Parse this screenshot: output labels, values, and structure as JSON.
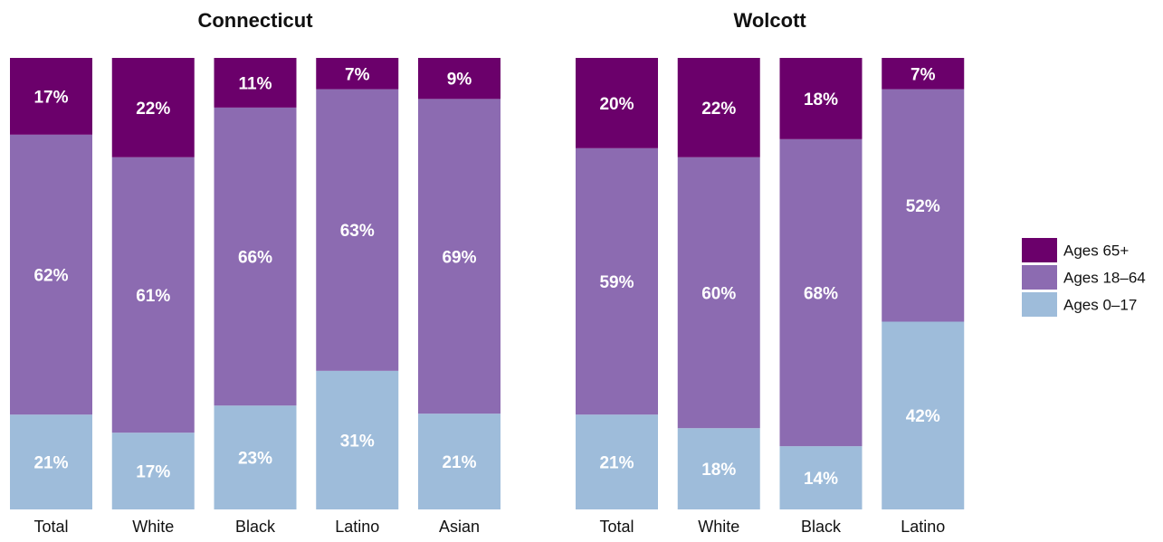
{
  "chart_data": {
    "type": "bar",
    "stacked": true,
    "normalized_percent": true,
    "legend_position": "right",
    "grid": false,
    "legend": [
      {
        "name": "Ages 65+",
        "color": "#6b006b"
      },
      {
        "name": "Ages 18–64",
        "color": "#8c6bb1"
      },
      {
        "name": "Ages 0–17",
        "color": "#9ebcda"
      }
    ],
    "panels": [
      {
        "title": "Connecticut",
        "categories": [
          "Total",
          "White",
          "Black",
          "Latino",
          "Asian"
        ],
        "series": [
          {
            "name": "Ages 0–17",
            "values": [
              21,
              17,
              23,
              31,
              21
            ],
            "labels": [
              "21%",
              "17%",
              "23%",
              "31%",
              "21%"
            ]
          },
          {
            "name": "Ages 18–64",
            "values": [
              62,
              61,
              66,
              63,
              69
            ],
            "labels": [
              "62%",
              "61%",
              "66%",
              "63%",
              "69%"
            ]
          },
          {
            "name": "Ages 65+",
            "values": [
              17,
              22,
              11,
              7,
              9
            ],
            "labels": [
              "17%",
              "22%",
              "11%",
              "7%",
              "9%"
            ]
          }
        ]
      },
      {
        "title": "Wolcott",
        "categories": [
          "Total",
          "White",
          "Black",
          "Latino"
        ],
        "series": [
          {
            "name": "Ages 0–17",
            "values": [
              21,
              18,
              14,
              42
            ],
            "labels": [
              "21%",
              "18%",
              "14%",
              "42%"
            ]
          },
          {
            "name": "Ages 18–64",
            "values": [
              59,
              60,
              68,
              52
            ],
            "labels": [
              "59%",
              "60%",
              "68%",
              "52%"
            ]
          },
          {
            "name": "Ages 65+",
            "values": [
              20,
              22,
              18,
              7
            ],
            "labels": [
              "20%",
              "22%",
              "18%",
              "7%"
            ]
          }
        ]
      }
    ]
  }
}
